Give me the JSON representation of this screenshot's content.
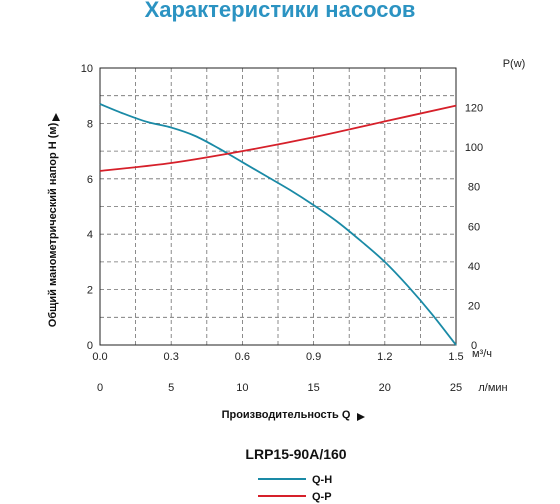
{
  "page_title": "Характеристики насосов",
  "colors": {
    "title": "#2b93c2",
    "qh": "#1a8aa6",
    "qp": "#d6202a",
    "grid": "#6f6f6f"
  },
  "chart_data": {
    "type": "line",
    "title": "Характеристики насосов",
    "model": "LRP15-90A/160",
    "xlabel": "Производительность Q",
    "y_left_label": "Общий манометрический напор H (м)",
    "y_right_label": "P(w)",
    "x_unit_primary": "м³/ч",
    "x_unit_secondary": "л/мин",
    "xlim": [
      0,
      1.5
    ],
    "ylim_left": [
      0,
      10
    ],
    "ylim_right": [
      0,
      140
    ],
    "x_ticks": [
      "0.0",
      "0.3",
      "0.6",
      "0.9",
      "1.2",
      "1.5"
    ],
    "x_ticks_secondary": [
      "0",
      "5",
      "10",
      "15",
      "20",
      "25"
    ],
    "x_secondary_values": [
      0,
      5,
      10,
      15,
      20,
      25
    ],
    "y_left_ticks": [
      "0",
      "2",
      "4",
      "6",
      "8",
      "10"
    ],
    "y_right_ticks": [
      "0",
      "20",
      "40",
      "60",
      "80",
      "100",
      "120"
    ],
    "grid": true,
    "legend_position": "bottom-center",
    "series": [
      {
        "name": "Q-H",
        "axis": "left",
        "x": [
          0,
          0.1,
          0.2,
          0.3,
          0.4,
          0.5,
          0.6,
          0.7,
          0.8,
          0.9,
          1.0,
          1.1,
          1.2,
          1.3,
          1.4,
          1.5
        ],
        "y": [
          8.7,
          8.35,
          8.05,
          7.85,
          7.55,
          7.1,
          6.6,
          6.1,
          5.6,
          5.05,
          4.45,
          3.75,
          3.0,
          2.1,
          1.1,
          0
        ]
      },
      {
        "name": "Q-P",
        "axis": "right",
        "x": [
          0,
          0.3,
          0.6,
          0.9,
          1.2,
          1.5
        ],
        "y": [
          88,
          92,
          98,
          105,
          113,
          121
        ]
      }
    ]
  }
}
